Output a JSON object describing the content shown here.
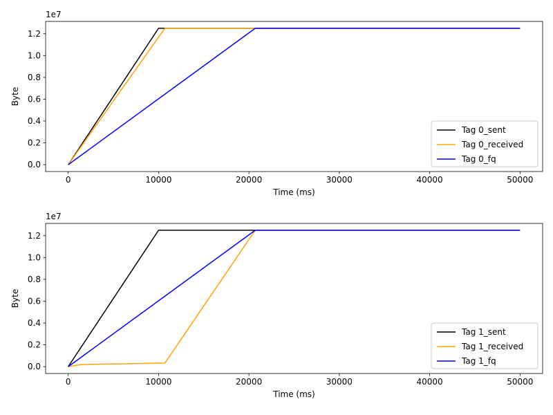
{
  "colors": {
    "sent": "#000000",
    "received": "#ffa500",
    "fq": "#0000ff"
  },
  "chart_data": [
    {
      "type": "line",
      "xlabel": "Time (ms)",
      "ylabel": "Byte",
      "y_offset_label": "1e7",
      "xlim": [
        -2500,
        52500
      ],
      "ylim": [
        -625000,
        13125000
      ],
      "xticks": [
        0,
        10000,
        20000,
        30000,
        40000,
        50000
      ],
      "xtick_labels": [
        "0",
        "10000",
        "20000",
        "30000",
        "40000",
        "50000"
      ],
      "yticks": [
        0,
        2000000,
        4000000,
        6000000,
        8000000,
        10000000,
        12000000
      ],
      "ytick_labels": [
        "0.0",
        "0.2",
        "0.4",
        "0.6",
        "0.8",
        "1.0",
        "1.2"
      ],
      "grid": false,
      "legend_position": "lower-right",
      "series": [
        {
          "name": "Tag 0_sent",
          "color": "#000000",
          "x": [
            0,
            10000,
            50000
          ],
          "y": [
            0,
            12500000,
            12500000
          ]
        },
        {
          "name": "Tag 0_received",
          "color": "#ffa500",
          "x": [
            0,
            10700,
            50000
          ],
          "y": [
            0,
            12500000,
            12500000
          ]
        },
        {
          "name": "Tag 0_fq",
          "color": "#0000ff",
          "x": [
            0,
            20700,
            50000
          ],
          "y": [
            0,
            12500000,
            12500000
          ]
        }
      ]
    },
    {
      "type": "line",
      "xlabel": "Time (ms)",
      "ylabel": "Byte",
      "y_offset_label": "1e7",
      "xlim": [
        -2500,
        52500
      ],
      "ylim": [
        -625000,
        13125000
      ],
      "xticks": [
        0,
        10000,
        20000,
        30000,
        40000,
        50000
      ],
      "xtick_labels": [
        "0",
        "10000",
        "20000",
        "30000",
        "40000",
        "50000"
      ],
      "yticks": [
        0,
        2000000,
        4000000,
        6000000,
        8000000,
        10000000,
        12000000
      ],
      "ytick_labels": [
        "0.0",
        "0.2",
        "0.4",
        "0.6",
        "0.8",
        "1.0",
        "1.2"
      ],
      "grid": false,
      "legend_position": "lower-right",
      "series": [
        {
          "name": "Tag 1_sent",
          "color": "#000000",
          "x": [
            0,
            10000,
            50000
          ],
          "y": [
            0,
            12500000,
            12500000
          ]
        },
        {
          "name": "Tag 1_received",
          "color": "#ffa500",
          "x": [
            0,
            1500,
            10700,
            20700,
            50000
          ],
          "y": [
            0,
            200000,
            330000,
            12500000,
            12500000
          ]
        },
        {
          "name": "Tag 1_fq",
          "color": "#0000ff",
          "x": [
            0,
            20700,
            50000
          ],
          "y": [
            0,
            12500000,
            12500000
          ]
        }
      ]
    }
  ]
}
